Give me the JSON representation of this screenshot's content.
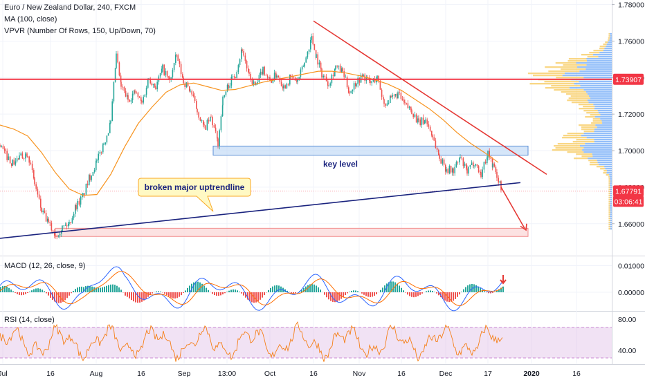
{
  "chart_data": [
    {
      "type": "line",
      "title": "Euro / New Zealand Dollar, 240, FXCM",
      "indicators": [
        "MA (100, close)",
        "VPVR (Number Of Rows, 150, Up/Down, 70)"
      ],
      "x_ticks": [
        "Jul",
        "16",
        "Aug",
        "16",
        "Sep",
        "13:00",
        "Oct",
        "16",
        "Nov",
        "16",
        "Dec",
        "17",
        "2020",
        "16"
      ],
      "y_ticks": [
        "1.78000",
        "1.76000",
        "1.74000",
        "1.72000",
        "1.70000",
        "1.68000",
        "1.66000"
      ],
      "ylim": [
        1.6425,
        1.7825
      ],
      "series": [
        {
          "name": "EUR/NZD",
          "color": "#26a69a",
          "x": [
            0,
            8,
            18,
            28,
            40,
            50,
            60,
            70,
            80,
            90,
            100,
            110,
            120,
            130,
            140,
            150,
            160,
            168,
            175,
            185,
            195,
            205,
            215,
            225,
            235,
            245,
            255,
            265,
            275,
            285,
            295,
            305,
            315,
            322,
            330,
            340,
            350,
            360,
            370,
            380,
            390,
            400,
            410,
            420,
            430,
            440,
            450,
            457,
            465,
            475,
            485,
            495,
            505,
            515,
            525,
            535,
            545,
            555,
            565,
            575,
            585,
            595,
            605,
            615,
            625,
            635,
            645,
            655,
            665,
            675,
            685,
            695,
            705,
            712,
            718,
            724
          ],
          "values": [
            1.703,
            1.698,
            1.693,
            1.696,
            1.699,
            1.682,
            1.667,
            1.66,
            1.654,
            1.658,
            1.66,
            1.67,
            1.675,
            1.686,
            1.694,
            1.704,
            1.715,
            1.752,
            1.735,
            1.728,
            1.732,
            1.726,
            1.74,
            1.735,
            1.745,
            1.738,
            1.752,
            1.738,
            1.733,
            1.722,
            1.712,
            1.718,
            1.704,
            1.728,
            1.736,
            1.742,
            1.756,
            1.74,
            1.735,
            1.745,
            1.738,
            1.742,
            1.735,
            1.74,
            1.738,
            1.748,
            1.762,
            1.752,
            1.742,
            1.737,
            1.746,
            1.743,
            1.732,
            1.738,
            1.741,
            1.737,
            1.74,
            1.726,
            1.728,
            1.731,
            1.725,
            1.722,
            1.715,
            1.717,
            1.708,
            1.696,
            1.69,
            1.689,
            1.696,
            1.688,
            1.694,
            1.687,
            1.699,
            1.692,
            1.686,
            1.68
          ]
        },
        {
          "name": "MA (100, close)",
          "color": "#f7931e",
          "x": [
            0,
            20,
            40,
            60,
            80,
            100,
            120,
            140,
            160,
            180,
            200,
            220,
            240,
            260,
            280,
            300,
            320,
            340,
            360,
            380,
            400,
            420,
            440,
            460,
            480,
            500,
            520,
            540,
            560,
            580,
            600,
            620,
            640,
            660,
            680,
            700,
            720
          ],
          "values": [
            1.714,
            1.7118,
            1.708,
            1.699,
            1.688,
            1.679,
            1.6755,
            1.676,
            1.687,
            1.702,
            1.715,
            1.724,
            1.732,
            1.736,
            1.737,
            1.735,
            1.733,
            1.7335,
            1.7355,
            1.7375,
            1.739,
            1.7405,
            1.742,
            1.7435,
            1.7435,
            1.7425,
            1.741,
            1.739,
            1.7365,
            1.733,
            1.728,
            1.723,
            1.717,
            1.71,
            1.704,
            1.699,
            1.6935
          ]
        }
      ],
      "horizontal_levels": [
        {
          "name": "resistance",
          "value": 1.73907,
          "label": "1.73907",
          "color": "#f23645"
        },
        {
          "name": "last price",
          "value": 1.67791,
          "label": "1.67791",
          "color": "#f23645"
        }
      ],
      "countdown": "03:06:41",
      "annotations": [
        {
          "text": "key level",
          "type": "zone",
          "ymin": 1.6975,
          "ymax": 1.7025,
          "x_start": 308,
          "x_end": 763
        },
        {
          "text": "broken major uptrendline",
          "type": "trendline",
          "points": [
            [
              0,
              1.652
            ],
            [
              752,
              1.6825
            ]
          ]
        },
        {
          "text": "",
          "type": "downtrend",
          "points": [
            [
              453,
              1.771
            ],
            [
              790,
              1.687
            ]
          ]
        },
        {
          "text": "",
          "type": "target zone",
          "ymin": 1.653,
          "ymax": 1.6575,
          "x_start": 80,
          "x_end": 763
        }
      ],
      "volume_profile": {
        "up_color": "#5b9cf6",
        "down_color": "#f7c95c",
        "poc": 1.73907
      }
    },
    {
      "type": "line",
      "title": "MACD (12, 26, close, 9)",
      "y_ticks": [
        "0.01000",
        "0.00000"
      ],
      "ylim": [
        -0.007,
        0.0135
      ],
      "series": [
        {
          "name": "MACD",
          "color": "#2962ff"
        },
        {
          "name": "Signal",
          "color": "#ff6d00"
        }
      ]
    },
    {
      "type": "line",
      "title": "RSI (14, close)",
      "y_ticks": [
        "80.00",
        "40.00"
      ],
      "ylim": [
        22,
        90
      ],
      "band": [
        30,
        70
      ],
      "series": [
        {
          "name": "RSI",
          "color": "#f57f17"
        }
      ]
    }
  ]
}
